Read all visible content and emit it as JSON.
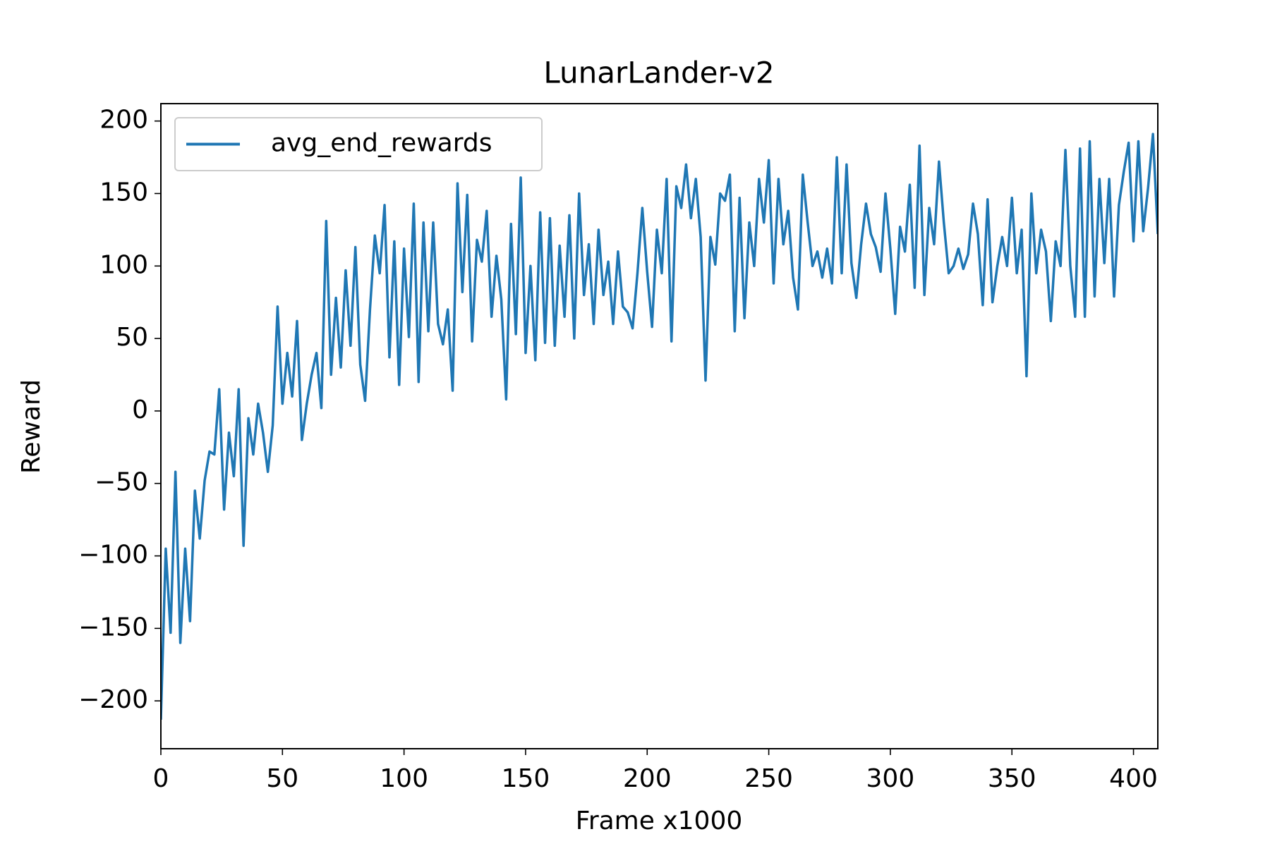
{
  "chart_data": {
    "type": "line",
    "title": "LunarLander-v2",
    "x_label": "Frame x1000",
    "y_label": "Reward",
    "x": [
      0,
      2,
      4,
      6,
      8,
      10,
      12,
      14,
      16,
      18,
      20,
      22,
      24,
      26,
      28,
      30,
      32,
      34,
      36,
      38,
      40,
      42,
      44,
      46,
      48,
      50,
      52,
      54,
      56,
      58,
      60,
      62,
      64,
      66,
      68,
      70,
      72,
      74,
      76,
      78,
      80,
      82,
      84,
      86,
      88,
      90,
      92,
      94,
      96,
      98,
      100,
      102,
      104,
      106,
      108,
      110,
      112,
      114,
      116,
      118,
      120,
      122,
      124,
      126,
      128,
      130,
      132,
      134,
      136,
      138,
      140,
      142,
      144,
      146,
      148,
      150,
      152,
      154,
      156,
      158,
      160,
      162,
      164,
      166,
      168,
      170,
      172,
      174,
      176,
      178,
      180,
      182,
      184,
      186,
      188,
      190,
      192,
      194,
      196,
      198,
      200,
      202,
      204,
      206,
      208,
      210,
      212,
      214,
      216,
      218,
      220,
      222,
      224,
      226,
      228,
      230,
      232,
      234,
      236,
      238,
      240,
      242,
      244,
      246,
      248,
      250,
      252,
      254,
      256,
      258,
      260,
      262,
      264,
      266,
      268,
      270,
      272,
      274,
      276,
      278,
      280,
      282,
      284,
      286,
      288,
      290,
      292,
      294,
      296,
      298,
      300,
      302,
      304,
      306,
      308,
      310,
      312,
      314,
      316,
      318,
      320,
      322,
      324,
      326,
      328,
      330,
      332,
      334,
      336,
      338,
      340,
      342,
      344,
      346,
      348,
      350,
      352,
      354,
      356,
      358,
      360,
      362,
      364,
      366,
      368,
      370,
      372,
      374,
      376,
      378,
      380,
      382,
      384,
      386,
      388,
      390,
      392,
      394,
      396,
      398,
      400,
      402,
      404,
      406,
      408,
      410
    ],
    "series": [
      {
        "name": "avg_end_rewards",
        "color": "#1f77b4",
        "values": [
          -213,
          -95,
          -153,
          -42,
          -160,
          -95,
          -145,
          -55,
          -88,
          -48,
          -28,
          -30,
          15,
          -68,
          -15,
          -45,
          15,
          -93,
          -5,
          -30,
          5,
          -15,
          -42,
          -10,
          72,
          5,
          40,
          10,
          62,
          -20,
          5,
          25,
          40,
          2,
          131,
          25,
          78,
          30,
          97,
          45,
          113,
          32,
          7,
          70,
          121,
          95,
          142,
          37,
          117,
          18,
          112,
          51,
          143,
          20,
          130,
          55,
          130,
          60,
          46,
          70,
          14,
          157,
          82,
          149,
          48,
          118,
          103,
          138,
          65,
          107,
          77,
          8,
          129,
          53,
          161,
          40,
          100,
          35,
          137,
          47,
          133,
          45,
          114,
          65,
          135,
          50,
          150,
          80,
          115,
          60,
          125,
          80,
          103,
          60,
          110,
          72,
          68,
          57,
          95,
          140,
          96,
          58,
          125,
          95,
          160,
          48,
          155,
          140,
          170,
          133,
          160,
          120,
          21,
          120,
          101,
          150,
          145,
          163,
          55,
          147,
          64,
          130,
          100,
          160,
          130,
          173,
          88,
          160,
          115,
          138,
          92,
          70,
          163,
          130,
          100,
          110,
          92,
          112,
          88,
          175,
          95,
          170,
          102,
          78,
          115,
          143,
          122,
          113,
          96,
          150,
          112,
          67,
          127,
          110,
          156,
          85,
          183,
          80,
          140,
          115,
          172,
          130,
          95,
          100,
          112,
          98,
          108,
          143,
          122,
          73,
          146,
          75,
          100,
          120,
          100,
          147,
          95,
          125,
          24,
          150,
          95,
          125,
          110,
          62,
          117,
          100,
          180,
          100,
          65,
          181,
          65,
          186,
          79,
          160,
          102,
          160,
          79,
          142,
          165,
          185,
          117,
          186,
          124,
          154,
          191,
          122
        ]
      }
    ],
    "xlim": [
      0,
      410
    ],
    "ylim": [
      -233,
      212
    ],
    "xticks": [
      0,
      50,
      100,
      150,
      200,
      250,
      300,
      350,
      400
    ],
    "yticks": [
      {
        "value": -200,
        "label": "−200"
      },
      {
        "value": -150,
        "label": "−150"
      },
      {
        "value": -100,
        "label": "−100"
      },
      {
        "value": -50,
        "label": "−50"
      },
      0,
      50,
      100,
      150,
      200
    ],
    "grid": false,
    "legend": "upper left"
  }
}
